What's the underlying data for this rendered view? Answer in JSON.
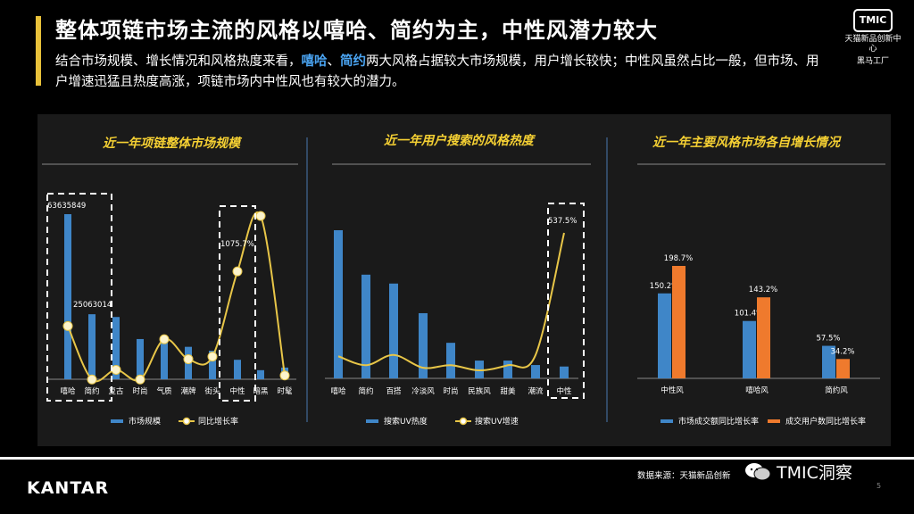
{
  "header": {
    "title": "整体项链市场主流的风格以嘻哈、简约为主，中性风潜力较大",
    "subtitle_pre": "结合市场规模、增长情况和风格热度来看，",
    "subtitle_hl1": "嘻哈",
    "subtitle_sep": "、",
    "subtitle_hl2": "简约",
    "subtitle_post": "两大风格占据较大市场规模，用户增长较快；中性风虽然占比一般，但市场、用户增速迅猛且热度高涨，项链市场内中性风也有较大的潜力。"
  },
  "brand": {
    "logo": "TMIC",
    "line1": "天猫新品创新中心",
    "line2": "黑马工厂"
  },
  "footer": {
    "company": "KANTAR",
    "source": "数据来源：天猫新品创新",
    "wechat": "TMIC洞察",
    "page": "5"
  },
  "colors": {
    "bar_blue": "#3f86c8",
    "line_yellow": "#e8c648",
    "bar_orange": "#ef7a2d",
    "title_yellow": "#f5d033",
    "accent": "#e8c13a"
  },
  "chart_data": [
    {
      "type": "bar",
      "title": "近一年项链整体市场规模",
      "categories": [
        "嘻哈",
        "简约",
        "复古",
        "时尚",
        "气质",
        "潮牌",
        "街头",
        "中性",
        "暗黑",
        "时髦"
      ],
      "series": [
        {
          "name": "市场规模",
          "type": "bar",
          "values": [
            63635849,
            25063014,
            24000000,
            15500000,
            14500000,
            12500000,
            11000000,
            7500000,
            3500000,
            4500000
          ]
        },
        {
          "name": "同比增长率",
          "type": "line",
          "values": [
            540,
            15,
            110,
            15,
            410,
            215,
            240,
            1075.7,
            1620,
            55
          ]
        }
      ],
      "data_labels": [
        {
          "series": 0,
          "index": 0,
          "text": "63635849"
        },
        {
          "series": 0,
          "index": 1,
          "text": "25063014"
        },
        {
          "series": 1,
          "index": 7,
          "text": "1075.7%"
        }
      ]
    },
    {
      "type": "bar",
      "title": "近一年用户搜索的风格热度",
      "categories": [
        "嘻哈",
        "简约",
        "百搭",
        "冷淡风",
        "时尚",
        "民族风",
        "甜美",
        "潮流",
        "中性"
      ],
      "series": [
        {
          "name": "搜索UV热度",
          "type": "bar",
          "values": [
            100,
            70,
            64,
            44,
            24,
            12,
            12,
            9,
            8
          ]
        },
        {
          "name": "搜索UV增速",
          "type": "line",
          "values": [
            55,
            20,
            60,
            10,
            20,
            0,
            20,
            60,
            537.5
          ]
        }
      ],
      "data_labels": [
        {
          "series": 1,
          "index": 8,
          "text": "537.5%"
        }
      ]
    },
    {
      "type": "bar",
      "title": "近一年主要风格市场各自增长情况",
      "categories": [
        "中性风",
        "嘻哈风",
        "简约风"
      ],
      "series": [
        {
          "name": "市场成交额同比增长率",
          "values": [
            150.2,
            101.4,
            57.5
          ]
        },
        {
          "name": "成交用户数同比增长率",
          "values": [
            198.7,
            143.2,
            34.2
          ]
        }
      ],
      "data_labels": [
        {
          "series": 0,
          "values": [
            "150.2%",
            "101.4%",
            "57.5%"
          ]
        },
        {
          "series": 1,
          "values": [
            "198.7%",
            "143.2%",
            "34.2%"
          ]
        }
      ]
    }
  ]
}
